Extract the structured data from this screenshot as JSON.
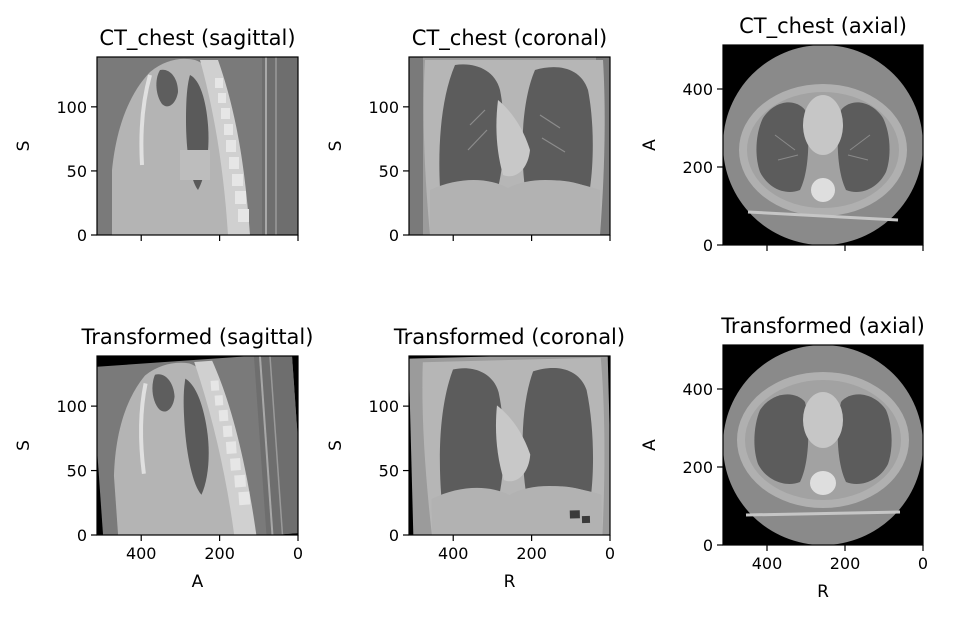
{
  "panels": [
    {
      "title": "CT_chest (sagittal)",
      "view": "sagittal",
      "transformed": false,
      "ylabel": "S",
      "xlabel": "",
      "yticks": [
        "0",
        "50",
        "100"
      ],
      "xticks": [
        "",
        "",
        ""
      ]
    },
    {
      "title": "CT_chest (coronal)",
      "view": "coronal",
      "transformed": false,
      "ylabel": "S",
      "xlabel": "",
      "yticks": [
        "0",
        "50",
        "100"
      ],
      "xticks": [
        "",
        "",
        ""
      ]
    },
    {
      "title": "CT_chest (axial)",
      "view": "axial",
      "transformed": false,
      "ylabel": "A",
      "xlabel": "",
      "yticks": [
        "0",
        "200",
        "400"
      ],
      "xticks": [
        "",
        "",
        ""
      ]
    },
    {
      "title": "Transformed (sagittal)",
      "view": "sagittal",
      "transformed": true,
      "ylabel": "S",
      "xlabel": "A",
      "yticks": [
        "0",
        "50",
        "100"
      ],
      "xticks": [
        "400",
        "200",
        "0"
      ]
    },
    {
      "title": "Transformed (coronal)",
      "view": "coronal",
      "transformed": true,
      "ylabel": "S",
      "xlabel": "R",
      "yticks": [
        "0",
        "50",
        "100"
      ],
      "xticks": [
        "400",
        "200",
        "0"
      ]
    },
    {
      "title": "Transformed (axial)",
      "view": "axial",
      "transformed": true,
      "ylabel": "A",
      "xlabel": "R",
      "yticks": [
        "0",
        "200",
        "400"
      ],
      "xticks": [
        "400",
        "200",
        "0"
      ]
    }
  ]
}
